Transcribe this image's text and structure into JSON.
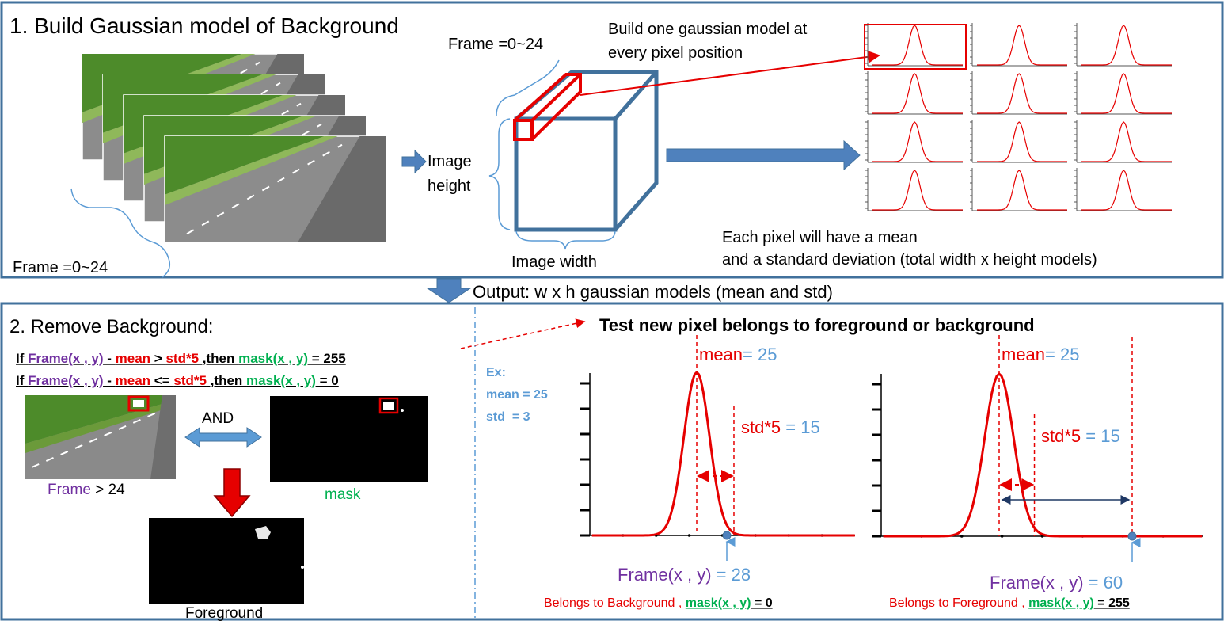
{
  "colors": {
    "border": "#41719c",
    "blue_shape": "#4f81bd",
    "red": "#e60000",
    "purple": "#7030a0",
    "green": "#00b050",
    "light_blue": "#5b9bd5",
    "dark_red": "#c00000",
    "navy": "#1f3864",
    "grass": "#4d8b2a",
    "road": "#7f7f7f"
  },
  "section1": {
    "title": "1. Build Gaussian model of Background",
    "frames_label": "Frame =0~24",
    "cube_frames_label": "Frame =0~24",
    "image_height_line1": "Image",
    "image_height_line2": "height",
    "image_width": "Image width",
    "build_note_line1": "Build one gaussian model at",
    "build_note_line2": "every pixel position",
    "each_pixel_line1": "Each pixel will have a mean",
    "each_pixel_line2": "and a standard deviation (total width x height models)",
    "grid": {
      "rows": 4,
      "cols": 3
    }
  },
  "output_label": "Output: w x h gaussian models (mean and std)",
  "section2": {
    "title": "2. Remove Background:",
    "rule1": {
      "frame": "Frame(x , y)",
      "minus": " - ",
      "mean": "mean",
      "op": " > ",
      "std": "std*5",
      "then": " ,then ",
      "mask": "mask(x , y)",
      "result": " = 255"
    },
    "rule2": {
      "frame": "Frame(x , y)",
      "minus": " - ",
      "mean": "mean",
      "op": " <= ",
      "std": "std*5",
      "then": " ,then ",
      "mask": "mask(x , y)",
      "result": " = 0"
    },
    "if_word": "If ",
    "and_label": "AND",
    "frame_caption": {
      "frame": "Frame",
      "rest": " > 24"
    },
    "mask_caption": "mask",
    "foreground_caption": "Foreground",
    "test_title": "Test new pixel belongs to foreground or background",
    "example": {
      "line1": "Ex:",
      "line2": "mean = 25",
      "line3": "std  = 3"
    },
    "charts": [
      {
        "mean_word": "mean",
        "mean_value": "= 25",
        "std_word": "std*5",
        "std_value": "= 15",
        "frame_word": "Frame(x , y)",
        "frame_value": "= 28",
        "verdict": "Belongs to Background , ",
        "verdict_mask": "mask(x , y)",
        "verdict_value": " = 0",
        "pixel_value": 28
      },
      {
        "mean_word": "mean",
        "mean_value": "= 25",
        "std_word": "std*5",
        "std_value": "= 15",
        "frame_word": "Frame(x , y)",
        "frame_value": "= 60",
        "verdict": "Belongs to Foreground , ",
        "verdict_mask": "mask(x , y)",
        "verdict_value": " = 255",
        "pixel_value": 60
      }
    ]
  }
}
